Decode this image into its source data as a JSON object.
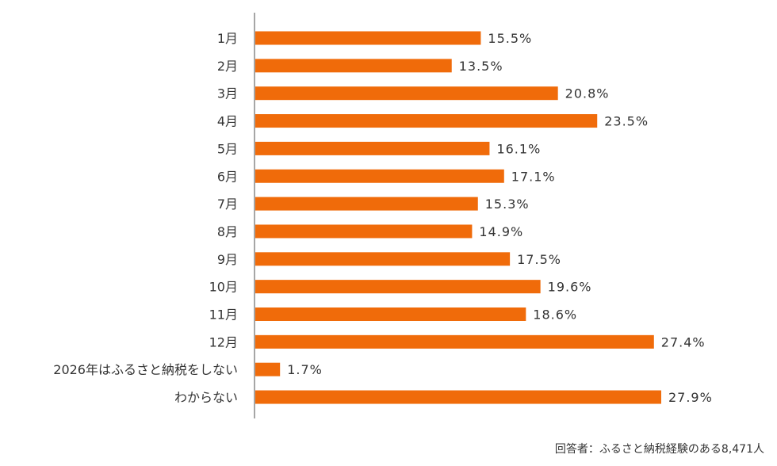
{
  "chart_data": {
    "type": "bar",
    "orientation": "horizontal",
    "categories": [
      "1月",
      "2月",
      "3月",
      "4月",
      "5月",
      "6月",
      "7月",
      "8月",
      "9月",
      "10月",
      "11月",
      "12月",
      "2026年はふるさと納税をしない",
      "わからない"
    ],
    "values": [
      15.5,
      13.5,
      20.8,
      23.5,
      16.1,
      17.1,
      15.3,
      14.9,
      17.5,
      19.6,
      18.6,
      27.4,
      1.7,
      27.9
    ],
    "value_labels": [
      "15.5%",
      "13.5%",
      "20.8%",
      "23.5%",
      "16.1%",
      "17.1%",
      "15.3%",
      "14.9%",
      "17.5%",
      "19.6%",
      "18.6%",
      "27.4%",
      "1.7%",
      "27.9%"
    ],
    "unit": "%",
    "xlim": [
      0,
      30
    ],
    "grid": false,
    "bar_color": "#f06b0a",
    "axis_color": "#888888"
  },
  "footnote": "回答者：ふるさと納税経験のある8,471人"
}
